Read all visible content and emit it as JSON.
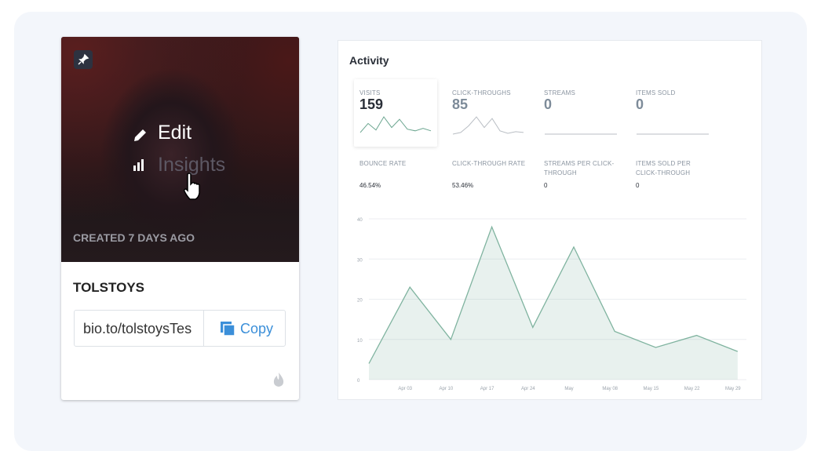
{
  "card": {
    "actions": [
      "Edit",
      "Insights"
    ],
    "created": "CREATED 7 DAYS AGO",
    "name": "TOLSTOYS",
    "link": "bio.to/tolstoysTes",
    "copy": "Copy"
  },
  "activity": {
    "title": "Activity",
    "stats": [
      {
        "label": "VISITS",
        "value": 159,
        "sparkline": [
          2,
          13,
          5,
          21,
          8,
          18,
          6,
          4,
          7,
          4
        ],
        "color": "#6aa58f"
      },
      {
        "label": "CLICK-THROUGHS",
        "value": 85,
        "sparkline": [
          0,
          2,
          10,
          21,
          8,
          19,
          4,
          1,
          3,
          2
        ],
        "color": "#b9bec4"
      },
      {
        "label": "STREAMS",
        "value": 0,
        "sparkline": [
          0,
          0,
          0,
          0,
          0,
          0,
          0,
          0,
          0,
          0
        ],
        "color": "#b9bec4"
      },
      {
        "label": "ITEMS SOLD",
        "value": 0,
        "sparkline": [
          0,
          0,
          0,
          0,
          0,
          0,
          0,
          0,
          0,
          0
        ],
        "color": "#b9bec4"
      }
    ],
    "rates": [
      {
        "label": "BOUNCE RATE",
        "value": "46.54%"
      },
      {
        "label": "CLICK-THROUGH RATE",
        "value": "53.46%"
      },
      {
        "label": "STREAMS PER CLICK-THROUGH",
        "value": "0"
      },
      {
        "label": "ITEMS SOLD PER CLICK-THROUGH",
        "value": "0"
      }
    ]
  },
  "chart_data": {
    "type": "area",
    "categories": [
      null,
      "Apr 03",
      "Apr 10",
      "Apr 17",
      "Apr 24",
      "May",
      "May 08",
      "May 15",
      "May 22",
      "May 29"
    ],
    "values": [
      4,
      23,
      10,
      38,
      13,
      33,
      12,
      8,
      11,
      7
    ],
    "color": "#7fb39f",
    "ylim": [
      0,
      40
    ],
    "yticks": [
      0,
      10,
      20,
      30,
      40
    ],
    "grid": true
  }
}
